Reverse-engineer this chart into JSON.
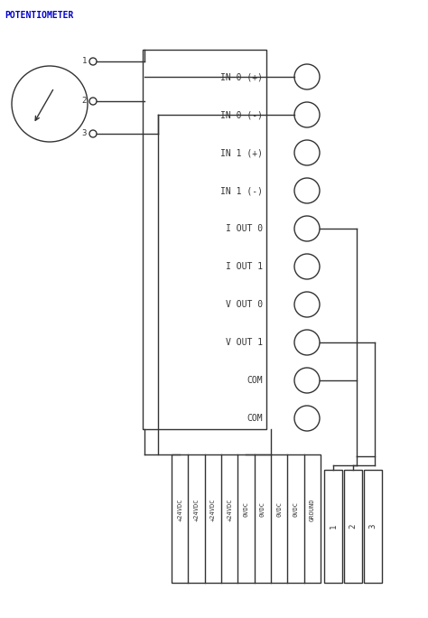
{
  "title": "POTENTIOMETER",
  "title_color": "#0000cc",
  "bg_color": "#ffffff",
  "line_color": "#333333",
  "terminal_labels": [
    "IN 0 (+)",
    "IN 0 (-)",
    "IN 1 (+)",
    "IN 1 (-)",
    "I OUT 0",
    "I OUT 1",
    "V OUT 0",
    "V OUT 1",
    "COM",
    "COM"
  ],
  "bottom_labels": [
    "+24VDC",
    "+24VDC",
    "+24VDC",
    "+24VDC",
    "0VDC",
    "0VDC",
    "0VDC",
    "0VDC",
    "GROUND"
  ],
  "pot_terminals": [
    "1",
    "2",
    "3"
  ],
  "bottom_pins": [
    "1",
    "2",
    "3"
  ],
  "figsize": [
    4.74,
    6.84
  ],
  "dpi": 100
}
